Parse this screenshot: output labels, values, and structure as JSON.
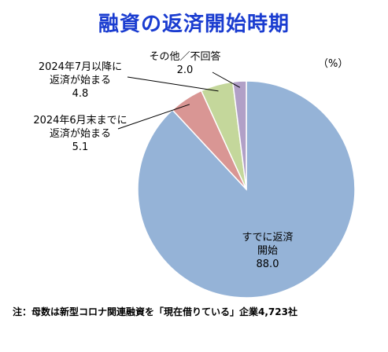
{
  "title": "融資の返済開始時期",
  "unit": "（%）",
  "note": "注：母数は新型コロナ関連融資を「現在借りている」企業4,723社",
  "chart_data": {
    "type": "pie",
    "title": "融資の返済開始時期",
    "start_angle_deg": 0,
    "direction": "clockwise",
    "slices": [
      {
        "name": "すでに返済開始",
        "value": 88.0,
        "label": "88.0",
        "color": "#95b3d7"
      },
      {
        "name": "2024年6月末までに返済が始まる",
        "value": 5.1,
        "label": "5.1",
        "color": "#d99694"
      },
      {
        "name": "2024年7月以降に返済が始まる",
        "value": 4.8,
        "label": "4.8",
        "color": "#c4d79b"
      },
      {
        "name": "その他／不回答",
        "value": 2.0,
        "label": "2.0",
        "color": "#b1a0c7"
      }
    ],
    "label_text": {
      "s0": [
        "すでに返済",
        "開始"
      ],
      "s1": [
        "2024年6月末までに",
        "返済が始まる"
      ],
      "s2": [
        "2024年7月以降に",
        "返済が始まる"
      ],
      "s3": [
        "その他／不回答"
      ]
    }
  }
}
